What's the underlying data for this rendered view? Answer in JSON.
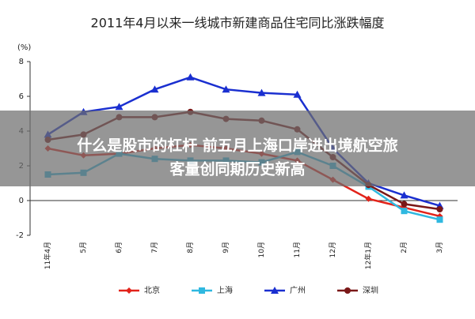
{
  "chart_data": {
    "type": "line",
    "title": "2011年4月以来一线城市新建商品住宅同比涨跌幅度",
    "y_unit": "(%)",
    "categories": [
      "11年4月",
      "5月",
      "6月",
      "7月",
      "8月",
      "9月",
      "10月",
      "11月",
      "12月",
      "12年1月",
      "2月",
      "3月"
    ],
    "series": [
      {
        "name": "北京",
        "color": "#e2231a",
        "marker": "diamond",
        "values": [
          3.0,
          2.6,
          2.7,
          3.0,
          3.2,
          3.0,
          2.7,
          2.3,
          1.2,
          0.1,
          -0.4,
          -0.9
        ]
      },
      {
        "name": "上海",
        "color": "#2fb8e0",
        "marker": "square",
        "values": [
          1.5,
          1.6,
          2.7,
          2.4,
          2.3,
          2.3,
          2.2,
          2.8,
          2.0,
          0.8,
          -0.6,
          -1.1
        ]
      },
      {
        "name": "广州",
        "color": "#1a2fd0",
        "marker": "triangle",
        "values": [
          3.8,
          5.1,
          5.4,
          6.4,
          7.1,
          6.4,
          6.2,
          6.1,
          3.0,
          1.0,
          0.3,
          -0.3
        ]
      },
      {
        "name": "深圳",
        "color": "#7a1818",
        "marker": "circle",
        "values": [
          3.5,
          3.8,
          4.8,
          4.8,
          5.1,
          4.7,
          4.6,
          4.1,
          2.5,
          0.9,
          -0.2,
          -0.5
        ]
      }
    ],
    "ylim": [
      -2,
      8
    ],
    "yticks": [
      -2,
      0,
      2,
      4,
      6,
      8
    ]
  },
  "overlay_text": [
    "什么是股市的杠杆 前五月上海口岸进出境航空旅",
    "客量创同期历史新高"
  ]
}
